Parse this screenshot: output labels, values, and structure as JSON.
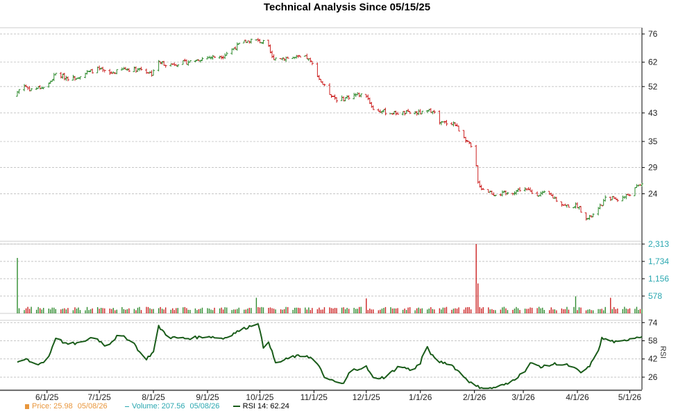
{
  "title": "Technical Analysis Since 05/15/25",
  "legend": {
    "price_label": "Price: 25.98",
    "price_date": "05/08/26",
    "volume_label": "Volume: 207.56",
    "volume_date": "05/08/26",
    "rsi_label": "RSI 14: 62.24"
  },
  "colors": {
    "up": "#2e8b2e",
    "down": "#cc2222",
    "rsi_line": "#1a5c1a",
    "volume_axis_text": "#2aa7b0",
    "grid": "#b4b4b4",
    "price_legend": "#e8963c"
  },
  "chart_data": [
    {
      "type": "candlestick",
      "panel": "price",
      "title": "Technical Analysis Since 05/15/25",
      "ylim": [
        18,
        76
      ],
      "y_ticks": [
        76,
        62,
        52,
        43,
        35,
        29,
        24
      ],
      "x_ticks": [
        "6/1/25",
        "7/1/25",
        "8/1/25",
        "9/1/25",
        "10/1/25",
        "11/1/25",
        "12/1/25",
        "1/1/26",
        "2/1/26",
        "3/1/26",
        "4/1/26",
        "5/1/26"
      ],
      "grid": "horizontal dashed",
      "anchors": [
        [
          "2025-05-15",
          50
        ],
        [
          "2025-05-18",
          53
        ],
        [
          "2025-05-22",
          51
        ],
        [
          "2025-06-01",
          52
        ],
        [
          "2025-06-06",
          57
        ],
        [
          "2025-06-10",
          56
        ],
        [
          "2025-06-15",
          55
        ],
        [
          "2025-06-22",
          57
        ],
        [
          "2025-06-30",
          59
        ],
        [
          "2025-07-07",
          57
        ],
        [
          "2025-07-15",
          59
        ],
        [
          "2025-07-25",
          59
        ],
        [
          "2025-07-31",
          57
        ],
        [
          "2025-08-03",
          62
        ],
        [
          "2025-08-10",
          61
        ],
        [
          "2025-08-20",
          62
        ],
        [
          "2025-08-31",
          64
        ],
        [
          "2025-09-10",
          65
        ],
        [
          "2025-09-20",
          71
        ],
        [
          "2025-09-27",
          73
        ],
        [
          "2025-10-01",
          72
        ],
        [
          "2025-10-05",
          71
        ],
        [
          "2025-10-08",
          64
        ],
        [
          "2025-10-20",
          64
        ],
        [
          "2025-10-28",
          64
        ],
        [
          "2025-11-01",
          60
        ],
        [
          "2025-11-04",
          55
        ],
        [
          "2025-11-09",
          50
        ],
        [
          "2025-11-15",
          47
        ],
        [
          "2025-11-24",
          49
        ],
        [
          "2025-12-01",
          49
        ],
        [
          "2025-12-05",
          44
        ],
        [
          "2025-12-15",
          43
        ],
        [
          "2025-12-25",
          43
        ],
        [
          "2026-01-03",
          43
        ],
        [
          "2026-01-08",
          44
        ],
        [
          "2026-01-12",
          40
        ],
        [
          "2026-01-20",
          40
        ],
        [
          "2026-01-28",
          35
        ],
        [
          "2026-02-01",
          32
        ],
        [
          "2026-02-03",
          26
        ],
        [
          "2026-02-05",
          25
        ],
        [
          "2026-02-12",
          24
        ],
        [
          "2026-02-20",
          24
        ],
        [
          "2026-03-01",
          25
        ],
        [
          "2026-03-07",
          24
        ],
        [
          "2026-03-15",
          24
        ],
        [
          "2026-03-25",
          22
        ],
        [
          "2026-04-01",
          22
        ],
        [
          "2026-04-07",
          20
        ],
        [
          "2026-04-12",
          21
        ],
        [
          "2026-04-18",
          23.5
        ],
        [
          "2026-04-25",
          23
        ],
        [
          "2026-05-01",
          24
        ],
        [
          "2026-05-08",
          25.98
        ]
      ]
    },
    {
      "type": "bar",
      "panel": "volume",
      "ylim": [
        0,
        2313
      ],
      "y_ticks": [
        2313,
        1734,
        1156,
        578
      ],
      "spikes": [
        [
          "2025-05-15",
          1850
        ],
        [
          "2025-09-29",
          520
        ],
        [
          "2025-11-01",
          560
        ],
        [
          "2025-12-01",
          500
        ],
        [
          "2026-02-02",
          2313
        ],
        [
          "2026-02-03",
          1000
        ],
        [
          "2026-03-31",
          570
        ],
        [
          "2026-04-20",
          520
        ]
      ],
      "baseline": 170
    },
    {
      "type": "line",
      "panel": "rsi",
      "ylabel": "RSI",
      "ylim": [
        15,
        76
      ],
      "y_ticks": [
        74,
        58,
        42,
        26
      ],
      "anchors": [
        [
          "2025-05-15",
          38
        ],
        [
          "2025-05-20",
          42
        ],
        [
          "2025-05-25",
          37
        ],
        [
          "2025-06-01",
          40
        ],
        [
          "2025-06-06",
          61
        ],
        [
          "2025-06-12",
          55
        ],
        [
          "2025-06-20",
          56
        ],
        [
          "2025-06-28",
          62
        ],
        [
          "2025-07-05",
          53
        ],
        [
          "2025-07-12",
          63
        ],
        [
          "2025-07-20",
          58
        ],
        [
          "2025-07-27",
          41
        ],
        [
          "2025-08-01",
          48
        ],
        [
          "2025-08-03",
          72
        ],
        [
          "2025-08-10",
          61
        ],
        [
          "2025-08-20",
          60
        ],
        [
          "2025-09-01",
          62
        ],
        [
          "2025-09-10",
          60
        ],
        [
          "2025-09-18",
          66
        ],
        [
          "2025-09-24",
          70
        ],
        [
          "2025-09-30",
          74
        ],
        [
          "2025-10-03",
          52
        ],
        [
          "2025-10-06",
          58
        ],
        [
          "2025-10-10",
          38
        ],
        [
          "2025-10-20",
          44
        ],
        [
          "2025-10-28",
          45
        ],
        [
          "2025-11-02",
          40
        ],
        [
          "2025-11-08",
          24
        ],
        [
          "2025-11-18",
          20
        ],
        [
          "2025-11-22",
          32
        ],
        [
          "2025-12-01",
          35
        ],
        [
          "2025-12-05",
          25
        ],
        [
          "2025-12-12",
          26
        ],
        [
          "2025-12-20",
          36
        ],
        [
          "2025-12-27",
          32
        ],
        [
          "2026-01-01",
          38
        ],
        [
          "2026-01-04",
          54
        ],
        [
          "2026-01-10",
          40
        ],
        [
          "2026-01-18",
          38
        ],
        [
          "2026-01-25",
          28
        ],
        [
          "2026-02-01",
          18
        ],
        [
          "2026-02-10",
          16
        ],
        [
          "2026-02-20",
          20
        ],
        [
          "2026-03-01",
          30
        ],
        [
          "2026-03-05",
          38
        ],
        [
          "2026-03-12",
          35
        ],
        [
          "2026-03-20",
          38
        ],
        [
          "2026-03-28",
          36
        ],
        [
          "2026-04-03",
          30
        ],
        [
          "2026-04-07",
          34
        ],
        [
          "2026-04-12",
          45
        ],
        [
          "2026-04-15",
          60
        ],
        [
          "2026-04-25",
          56
        ],
        [
          "2026-05-01",
          60
        ],
        [
          "2026-05-08",
          62.24
        ]
      ]
    }
  ]
}
